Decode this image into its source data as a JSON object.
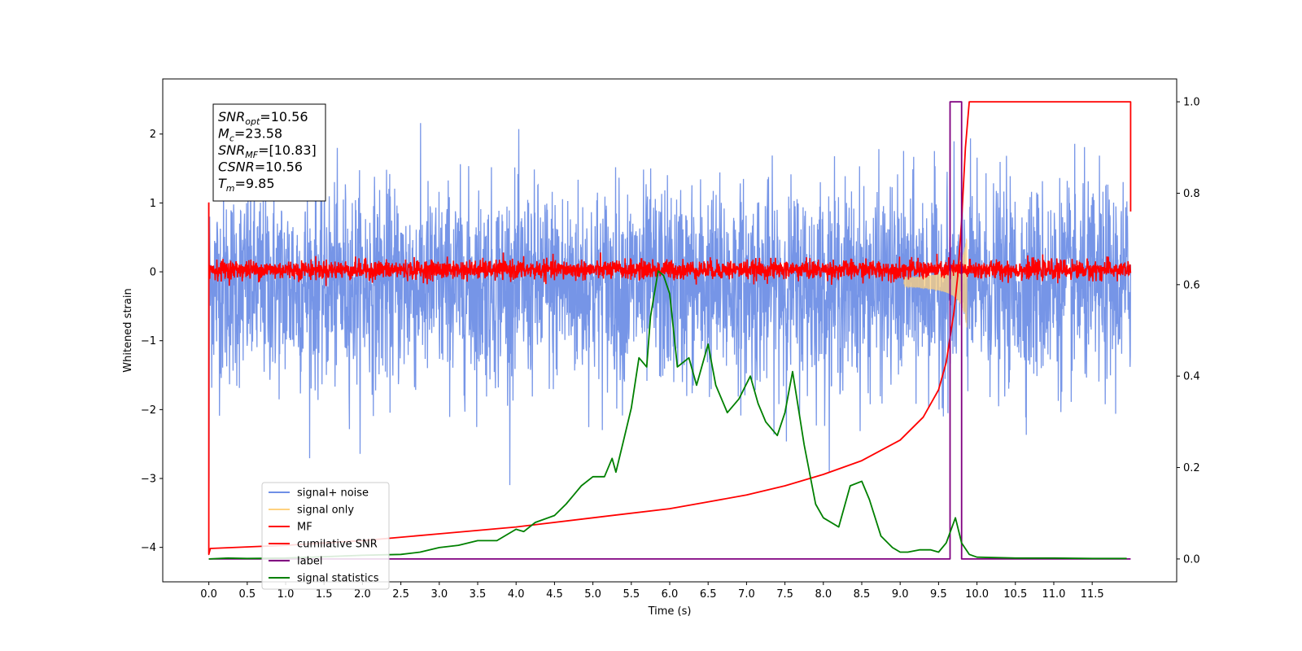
{
  "chart_data": {
    "type": "line",
    "xlabel": "Time (s)",
    "ylabel_left": "Whitened strain",
    "ylabel_right": "",
    "xlim": [
      -0.6,
      12.6
    ],
    "ylim_left": [
      -4.5,
      2.8
    ],
    "ylim_right": [
      -0.05,
      1.05
    ],
    "x_ticks": [
      0.0,
      0.5,
      1.0,
      1.5,
      2.0,
      2.5,
      3.0,
      3.5,
      4.0,
      4.5,
      5.0,
      5.5,
      6.0,
      6.5,
      7.0,
      7.5,
      8.0,
      8.5,
      9.0,
      9.5,
      10.0,
      10.5,
      11.0,
      11.5
    ],
    "x_tick_labels": [
      "0.0",
      "0.5",
      "1.0",
      "1.5",
      "2.0",
      "2.5",
      "3.0",
      "3.5",
      "4.0",
      "4.5",
      "5.0",
      "5.5",
      "6.0",
      "6.5",
      "7.0",
      "7.5",
      "8.0",
      "8.5",
      "9.0",
      "9.5",
      "10.0",
      "10.5",
      "11.0",
      "11.5"
    ],
    "y_ticks_left": [
      -4,
      -3,
      -2,
      -1,
      0,
      1,
      2
    ],
    "y_tick_labels_left": [
      "−4",
      "−3",
      "−2",
      "−1",
      "0",
      "1",
      "2"
    ],
    "y_ticks_right": [
      0.0,
      0.2,
      0.4,
      0.6,
      0.8,
      1.0
    ],
    "y_tick_labels_right": [
      "0.0",
      "0.2",
      "0.4",
      "0.6",
      "0.8",
      "1.0"
    ],
    "grid": false,
    "legend_position": "lower-left",
    "legend": [
      {
        "label": "signal+ noise",
        "color": "#6f8fe6"
      },
      {
        "label": "signal only",
        "color": "#ffd27f"
      },
      {
        "label": "MF",
        "color": "#ff0000"
      },
      {
        "label": "cumilative SNR",
        "color": "#ff0000"
      },
      {
        "label": "label",
        "color": "#800080"
      },
      {
        "label": "signal statistics",
        "color": "#008000"
      }
    ],
    "annotation_lines": [
      {
        "sym": "SNR",
        "sub": "opt",
        "val": "=10.56"
      },
      {
        "sym": "M",
        "sub": "c",
        "val": "=23.58"
      },
      {
        "sym": "SNR",
        "sub": "MF",
        "val": "=[10.83]"
      },
      {
        "sym": "CSNR",
        "sub": "",
        "val": "=10.56"
      },
      {
        "sym": "T",
        "sub": "m",
        "val": "=9.85"
      }
    ],
    "series": [
      {
        "name": "signal+ noise",
        "axis": "left",
        "style": "noise",
        "x_range": [
          0,
          12
        ],
        "mean": -0.2,
        "std": 0.72
      },
      {
        "name": "signal only",
        "axis": "left",
        "style": "chirp",
        "t_merge": 9.85,
        "max_amp": 0.7
      },
      {
        "name": "MF",
        "axis": "left",
        "style": "noise",
        "x_range": [
          0,
          12
        ],
        "mean": 0.03,
        "std": 0.07
      },
      {
        "name": "cumilative SNR",
        "axis": "right",
        "x": [
          0.0,
          0.0,
          0.02,
          1.0,
          2.0,
          3.0,
          4.0,
          5.0,
          6.0,
          6.5,
          7.0,
          7.5,
          8.0,
          8.5,
          9.0,
          9.3,
          9.5,
          9.6,
          9.7,
          9.75,
          9.8,
          9.85,
          9.9,
          12.0,
          12.0
        ],
        "y": [
          0.78,
          0.01,
          0.023,
          0.03,
          0.04,
          0.055,
          0.07,
          0.09,
          0.11,
          0.125,
          0.14,
          0.16,
          0.185,
          0.215,
          0.26,
          0.31,
          0.37,
          0.43,
          0.54,
          0.62,
          0.74,
          0.9,
          1.0,
          1.0,
          0.76
        ]
      },
      {
        "name": "label",
        "axis": "right",
        "x": [
          0.0,
          9.65,
          9.65,
          9.8,
          9.8,
          12.0
        ],
        "y": [
          0.0,
          0.0,
          1.0,
          1.0,
          0.0,
          0.0
        ]
      },
      {
        "name": "signal statistics",
        "axis": "right",
        "x": [
          0.0,
          0.25,
          0.5,
          1.0,
          1.5,
          2.0,
          2.5,
          2.75,
          3.0,
          3.25,
          3.5,
          3.75,
          4.0,
          4.1,
          4.25,
          4.5,
          4.65,
          4.75,
          4.85,
          5.0,
          5.15,
          5.25,
          5.3,
          5.4,
          5.5,
          5.6,
          5.7,
          5.75,
          5.85,
          5.92,
          6.0,
          6.1,
          6.25,
          6.35,
          6.5,
          6.6,
          6.75,
          6.9,
          7.05,
          7.15,
          7.25,
          7.4,
          7.5,
          7.6,
          7.75,
          7.9,
          8.0,
          8.2,
          8.35,
          8.5,
          8.6,
          8.75,
          8.9,
          9.0,
          9.1,
          9.25,
          9.4,
          9.5,
          9.6,
          9.72,
          9.8,
          9.9,
          10.0,
          10.5,
          11.0,
          11.5,
          11.95
        ],
        "y": [
          0.0,
          0.002,
          0.001,
          0.002,
          0.005,
          0.008,
          0.01,
          0.015,
          0.025,
          0.03,
          0.04,
          0.04,
          0.065,
          0.06,
          0.08,
          0.095,
          0.12,
          0.14,
          0.16,
          0.18,
          0.18,
          0.22,
          0.19,
          0.26,
          0.33,
          0.44,
          0.42,
          0.53,
          0.63,
          0.62,
          0.58,
          0.42,
          0.44,
          0.38,
          0.47,
          0.38,
          0.32,
          0.35,
          0.4,
          0.34,
          0.3,
          0.27,
          0.32,
          0.41,
          0.25,
          0.12,
          0.09,
          0.07,
          0.16,
          0.17,
          0.13,
          0.05,
          0.025,
          0.015,
          0.015,
          0.02,
          0.02,
          0.015,
          0.035,
          0.09,
          0.035,
          0.01,
          0.004,
          0.002,
          0.002,
          0.001,
          0.001
        ]
      }
    ]
  }
}
